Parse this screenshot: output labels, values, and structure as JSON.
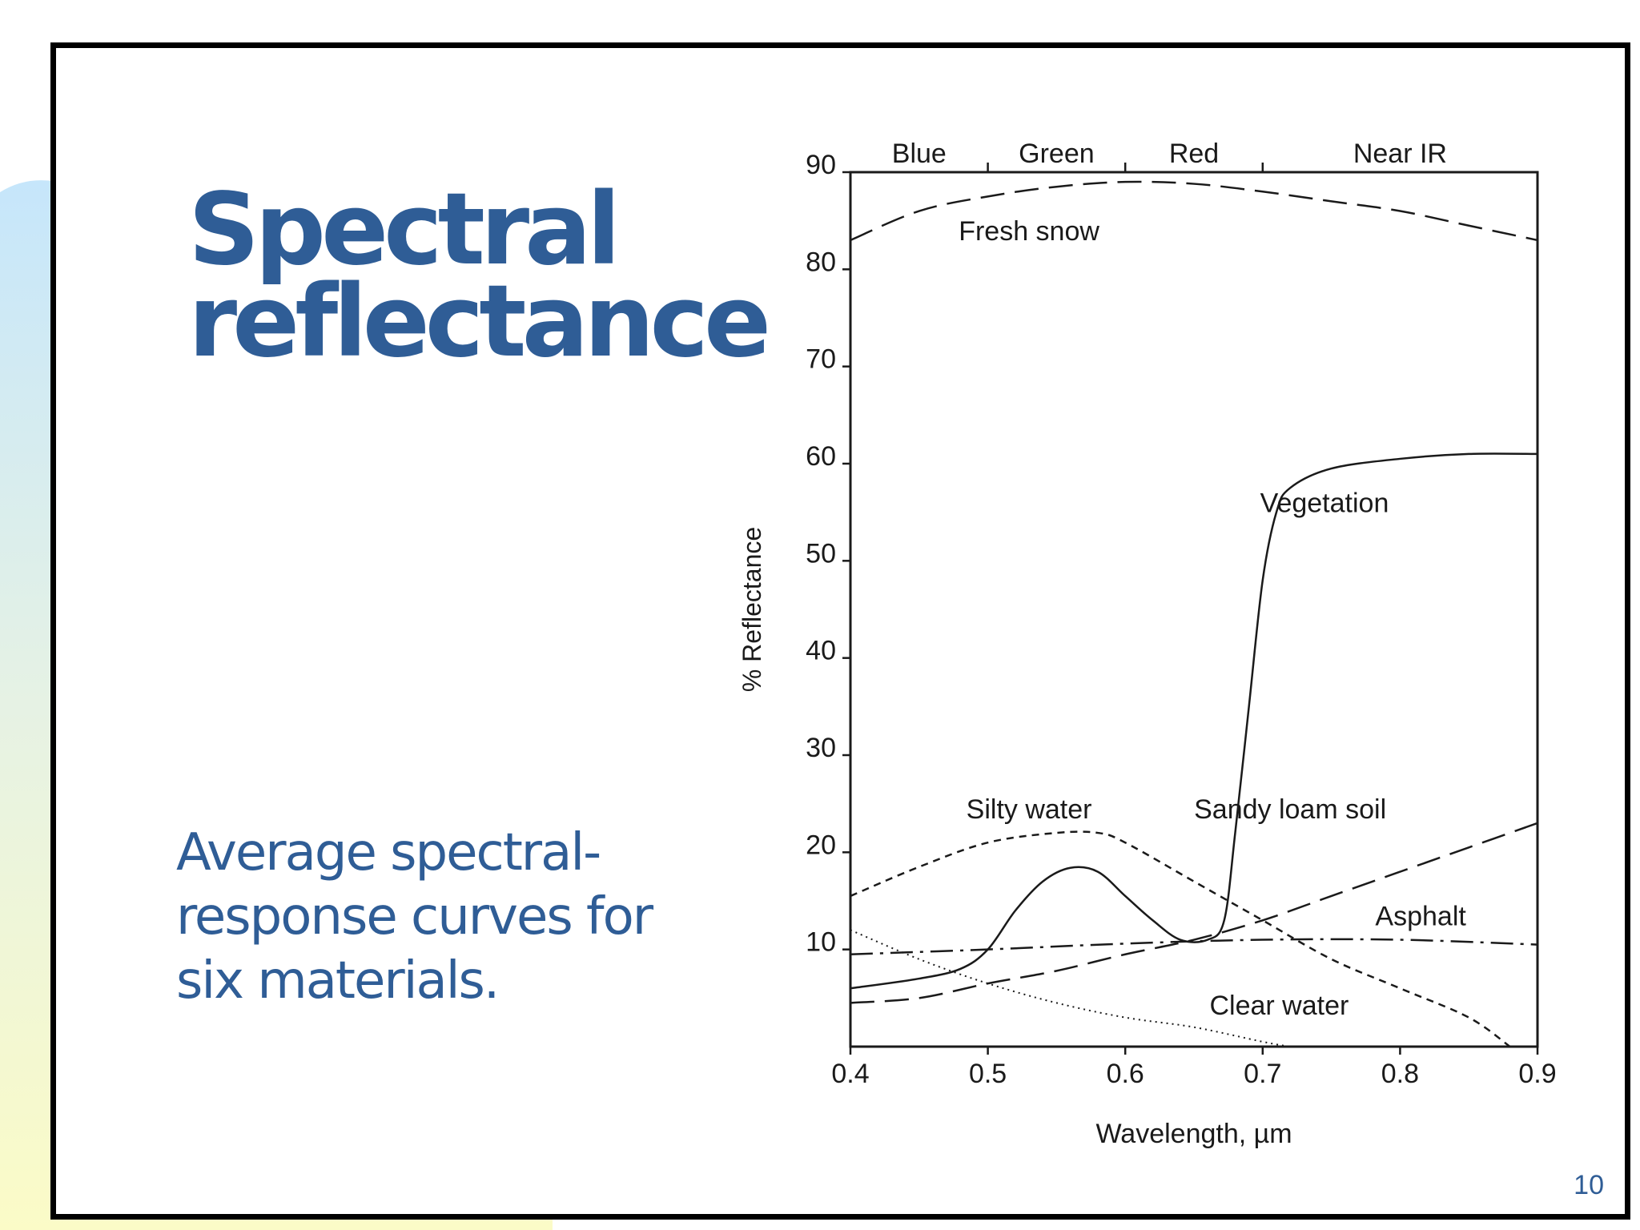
{
  "slide": {
    "title_lines": [
      "Spectral",
      "reflectance"
    ],
    "subtitle": "Average spectral-response curves for six materials.",
    "page_number": "10"
  },
  "colors": {
    "title": "#2f5d96",
    "background_gradient": [
      "#c6e6fb",
      "#e6f2e4",
      "#fbfbc7"
    ],
    "chart_ink": "#1a1a1a"
  },
  "chart_data": {
    "type": "line",
    "xlabel": "Wavelength, µm",
    "ylabel": "% Reflectance",
    "xlim": [
      0.4,
      0.9
    ],
    "ylim": [
      0,
      90
    ],
    "x_ticks": [
      "0.4",
      "0.5",
      "0.6",
      "0.7",
      "0.8",
      "0.9"
    ],
    "y_ticks": [
      "10",
      "20",
      "30",
      "40",
      "50",
      "60",
      "70",
      "80",
      "90"
    ],
    "grid": false,
    "bands": [
      {
        "label": "Blue",
        "range": [
          0.4,
          0.5
        ]
      },
      {
        "label": "Green",
        "range": [
          0.5,
          0.6
        ]
      },
      {
        "label": "Red",
        "range": [
          0.6,
          0.7
        ]
      },
      {
        "label": "Near IR",
        "range": [
          0.7,
          0.9
        ]
      }
    ],
    "series": [
      {
        "name": "Fresh snow",
        "style": "long-dash",
        "points": [
          [
            0.4,
            83
          ],
          [
            0.45,
            86
          ],
          [
            0.5,
            87.5
          ],
          [
            0.55,
            88.5
          ],
          [
            0.6,
            89
          ],
          [
            0.65,
            88.8
          ],
          [
            0.7,
            88
          ],
          [
            0.75,
            87
          ],
          [
            0.8,
            86
          ],
          [
            0.85,
            84.5
          ],
          [
            0.9,
            83
          ]
        ]
      },
      {
        "name": "Vegetation",
        "style": "solid",
        "points": [
          [
            0.4,
            6
          ],
          [
            0.45,
            7
          ],
          [
            0.48,
            8
          ],
          [
            0.5,
            10
          ],
          [
            0.52,
            14
          ],
          [
            0.54,
            17
          ],
          [
            0.56,
            18.4
          ],
          [
            0.58,
            18
          ],
          [
            0.6,
            15.5
          ],
          [
            0.62,
            13
          ],
          [
            0.64,
            11
          ],
          [
            0.66,
            11
          ],
          [
            0.672,
            13
          ],
          [
            0.68,
            22
          ],
          [
            0.69,
            35
          ],
          [
            0.7,
            48
          ],
          [
            0.71,
            55
          ],
          [
            0.72,
            57.5
          ],
          [
            0.75,
            59.5
          ],
          [
            0.8,
            60.5
          ],
          [
            0.85,
            61
          ],
          [
            0.9,
            61
          ]
        ]
      },
      {
        "name": "Silty water",
        "style": "short-dash",
        "points": [
          [
            0.4,
            15.5
          ],
          [
            0.45,
            18.5
          ],
          [
            0.5,
            21
          ],
          [
            0.55,
            22
          ],
          [
            0.58,
            22
          ],
          [
            0.6,
            21
          ],
          [
            0.65,
            17
          ],
          [
            0.7,
            13
          ],
          [
            0.75,
            9
          ],
          [
            0.8,
            6
          ],
          [
            0.85,
            3
          ],
          [
            0.88,
            0
          ]
        ]
      },
      {
        "name": "Sandy loam soil",
        "style": "long-dash",
        "points": [
          [
            0.4,
            4.5
          ],
          [
            0.45,
            5
          ],
          [
            0.5,
            6.5
          ],
          [
            0.55,
            7.8
          ],
          [
            0.6,
            9.5
          ],
          [
            0.65,
            11
          ],
          [
            0.7,
            13
          ],
          [
            0.75,
            15.5
          ],
          [
            0.8,
            18
          ],
          [
            0.85,
            20.5
          ],
          [
            0.9,
            23
          ]
        ]
      },
      {
        "name": "Asphalt",
        "style": "dash-dot",
        "points": [
          [
            0.4,
            9.5
          ],
          [
            0.5,
            10
          ],
          [
            0.6,
            10.6
          ],
          [
            0.7,
            11
          ],
          [
            0.8,
            11
          ],
          [
            0.9,
            10.5
          ]
        ]
      },
      {
        "name": "Clear water",
        "style": "dotted",
        "points": [
          [
            0.4,
            12
          ],
          [
            0.45,
            9
          ],
          [
            0.5,
            6.5
          ],
          [
            0.55,
            4.5
          ],
          [
            0.6,
            3
          ],
          [
            0.65,
            2
          ],
          [
            0.7,
            0.5
          ],
          [
            0.72,
            0
          ]
        ]
      }
    ],
    "annotations": [
      {
        "text": "Fresh snow",
        "x": 0.53,
        "y": 83
      },
      {
        "text": "Vegetation",
        "x": 0.745,
        "y": 55
      },
      {
        "text": "Silty water",
        "x": 0.53,
        "y": 23.5
      },
      {
        "text": "Sandy loam soil",
        "x": 0.72,
        "y": 23.5
      },
      {
        "text": "Asphalt",
        "x": 0.815,
        "y": 12.5
      },
      {
        "text": "Clear water",
        "x": 0.712,
        "y": 3.3
      }
    ]
  }
}
